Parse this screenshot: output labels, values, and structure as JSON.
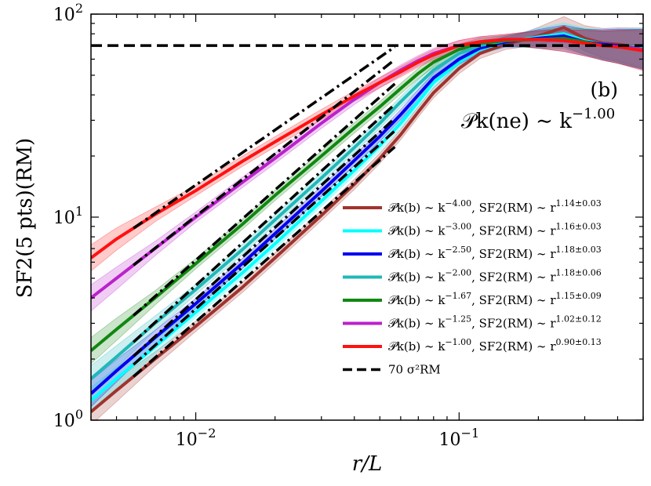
{
  "chart_data": {
    "type": "line",
    "xscale": "log",
    "yscale": "log",
    "xlim": [
      0.004,
      0.5
    ],
    "ylim": [
      1,
      100
    ],
    "xlabel": "r/L",
    "ylabel": "SF2(5 pts)(RM)",
    "x_tick_labels": [
      {
        "value": 0.01,
        "base": "10",
        "exp": "−2"
      },
      {
        "value": 0.1,
        "base": "10",
        "exp": "−1"
      }
    ],
    "y_tick_labels": [
      {
        "value": 1,
        "base": "10",
        "exp": "0"
      },
      {
        "value": 10,
        "base": "10",
        "exp": "1"
      },
      {
        "value": 100,
        "base": "10",
        "exp": "2"
      }
    ],
    "panel_label": "(b)",
    "annotation": {
      "main": "𝒫k(ne) ∼ k",
      "exp": "−1.00"
    },
    "reference_line": {
      "y": 70,
      "label": "70 σ²RM",
      "color": "#000000"
    },
    "legend_position": "lower-right",
    "series": [
      {
        "name": "𝒫k(b) ∼ k−4.00, SF2(RM) ∼ r1.14±0.03",
        "label_main": "𝒫k(b) ∼ k",
        "label_exp1": "−4.00",
        "label_mid": ", SF2(RM) ∼ r",
        "label_exp2": "1.14±0.03",
        "color": "#a0332e",
        "fit_slope": 1.14,
        "fit_x": [
          0.0058,
          0.057
        ],
        "x": [
          0.004,
          0.005,
          0.007,
          0.01,
          0.015,
          0.02,
          0.03,
          0.04,
          0.05,
          0.06,
          0.07,
          0.08,
          0.1,
          0.12,
          0.15,
          0.2,
          0.25,
          0.3,
          0.35,
          0.4,
          0.5
        ],
        "y": [
          1.1,
          1.4,
          2.0,
          2.9,
          4.5,
          6.3,
          10.2,
          14.5,
          19.5,
          25.5,
          33.0,
          41.0,
          54.0,
          64.0,
          71.0,
          78.0,
          86.0,
          76.0,
          72.0,
          71.0,
          68.0
        ]
      },
      {
        "name": "𝒫k(b) ∼ k−3.00, SF2(RM) ∼ r1.16±0.03",
        "label_main": "𝒫k(b) ∼ k",
        "label_exp1": "−3.00",
        "label_mid": ", SF2(RM) ∼ r",
        "label_exp2": "1.16±0.03",
        "color": "#00ffff",
        "fit_slope": 1.16,
        "fit_x": [
          0.0058,
          0.057
        ],
        "x": [
          0.004,
          0.005,
          0.007,
          0.01,
          0.015,
          0.02,
          0.03,
          0.04,
          0.05,
          0.06,
          0.07,
          0.08,
          0.1,
          0.12,
          0.15,
          0.2,
          0.25,
          0.3,
          0.35,
          0.4,
          0.5
        ],
        "y": [
          1.25,
          1.6,
          2.3,
          3.4,
          5.3,
          7.4,
          12.0,
          17.0,
          22.5,
          29.0,
          37.0,
          46.0,
          58.0,
          67.0,
          73.0,
          77.0,
          80.0,
          74.0,
          71.0,
          70.0,
          68.0
        ]
      },
      {
        "name": "𝒫k(b) ∼ k−2.50, SF2(RM) ∼ r1.18±0.03",
        "label_main": "𝒫k(b) ∼ k",
        "label_exp1": "−2.50",
        "label_mid": ", SF2(RM) ∼ r",
        "label_exp2": "1.18±0.03",
        "color": "#0000ee",
        "fit_slope": 1.18,
        "fit_x": [
          0.0058,
          0.057
        ],
        "x": [
          0.004,
          0.005,
          0.007,
          0.01,
          0.015,
          0.02,
          0.03,
          0.04,
          0.05,
          0.06,
          0.07,
          0.08,
          0.1,
          0.12,
          0.15,
          0.2,
          0.25,
          0.3,
          0.35,
          0.4,
          0.5
        ],
        "y": [
          1.35,
          1.75,
          2.55,
          3.75,
          5.9,
          8.3,
          13.4,
          19.0,
          25.0,
          32.0,
          40.0,
          48.5,
          60.0,
          68.0,
          73.0,
          76.0,
          78.0,
          73.0,
          71.0,
          70.0,
          67.0
        ]
      },
      {
        "name": "𝒫k(b) ∼ k−2.00, SF2(RM) ∼ r1.18±0.06",
        "label_main": "𝒫k(b) ∼ k",
        "label_exp1": "−2.00",
        "label_mid": ", SF2(RM) ∼ r",
        "label_exp2": "1.18±0.06",
        "color": "#20b8b8",
        "fit_slope": 1.18,
        "fit_x": [
          0.0058,
          0.057
        ],
        "x": [
          0.004,
          0.005,
          0.007,
          0.01,
          0.015,
          0.02,
          0.03,
          0.04,
          0.05,
          0.06,
          0.07,
          0.08,
          0.1,
          0.12,
          0.15,
          0.2,
          0.25,
          0.3,
          0.35,
          0.4,
          0.5
        ],
        "y": [
          1.6,
          2.05,
          3.0,
          4.4,
          6.9,
          9.7,
          15.6,
          22.0,
          29.0,
          37.0,
          45.0,
          53.0,
          64.0,
          70.0,
          74.0,
          75.0,
          74.0,
          72.0,
          70.0,
          69.0,
          67.0
        ]
      },
      {
        "name": "𝒫k(b) ∼ k−1.67, SF2(RM) ∼ r1.15±0.09",
        "label_main": "𝒫k(b) ∼ k",
        "label_exp1": "−1.67",
        "label_mid": ", SF2(RM) ∼ r",
        "label_exp2": "1.15±0.09",
        "color": "#118811",
        "fit_slope": 1.15,
        "fit_x": [
          0.0058,
          0.057
        ],
        "x": [
          0.004,
          0.005,
          0.007,
          0.01,
          0.015,
          0.02,
          0.03,
          0.04,
          0.05,
          0.06,
          0.07,
          0.08,
          0.1,
          0.12,
          0.15,
          0.2,
          0.25,
          0.3,
          0.35,
          0.4,
          0.5
        ],
        "y": [
          2.2,
          2.8,
          4.0,
          5.9,
          9.2,
          12.8,
          20.0,
          27.5,
          35.0,
          43.0,
          51.0,
          58.0,
          67.0,
          72.0,
          74.0,
          75.0,
          76.0,
          73.0,
          70.0,
          69.0,
          67.0
        ]
      },
      {
        "name": "𝒫k(b) ∼ k−1.25, SF2(RM) ∼ r1.02±0.12",
        "label_main": "𝒫k(b) ∼ k",
        "label_exp1": "−1.25",
        "label_mid": ", SF2(RM) ∼ r",
        "label_exp2": "1.02±0.12",
        "color": "#bb22cc",
        "fit_slope": 1.02,
        "fit_x": [
          0.0058,
          0.057
        ],
        "x": [
          0.004,
          0.005,
          0.007,
          0.01,
          0.015,
          0.02,
          0.03,
          0.04,
          0.05,
          0.06,
          0.07,
          0.08,
          0.1,
          0.12,
          0.15,
          0.2,
          0.25,
          0.3,
          0.35,
          0.4,
          0.5
        ],
        "y": [
          4.0,
          5.0,
          7.0,
          10.0,
          14.8,
          19.5,
          29.0,
          38.0,
          46.0,
          53.0,
          59.0,
          64.0,
          70.0,
          73.0,
          75.0,
          75.0,
          74.0,
          72.0,
          70.0,
          69.0,
          67.0
        ]
      },
      {
        "name": "𝒫k(b) ∼ k−1.00, SF2(RM) ∼ r0.90±0.13",
        "label_main": "𝒫k(b) ∼ k",
        "label_exp1": "−1.00",
        "label_mid": ", SF2(RM) ∼ r",
        "label_exp2": "0.90±0.13",
        "color": "#ff1111",
        "fit_slope": 0.9,
        "fit_x": [
          0.0058,
          0.057
        ],
        "x": [
          0.004,
          0.005,
          0.007,
          0.01,
          0.015,
          0.02,
          0.03,
          0.04,
          0.05,
          0.06,
          0.07,
          0.08,
          0.1,
          0.12,
          0.15,
          0.2,
          0.25,
          0.3,
          0.35,
          0.4,
          0.5
        ],
        "y": [
          6.3,
          7.8,
          10.3,
          13.5,
          18.8,
          23.5,
          32.0,
          39.5,
          46.0,
          52.0,
          58.0,
          63.0,
          70.0,
          73.0,
          75.0,
          75.0,
          74.0,
          72.0,
          70.0,
          69.0,
          66.0
        ]
      }
    ]
  }
}
